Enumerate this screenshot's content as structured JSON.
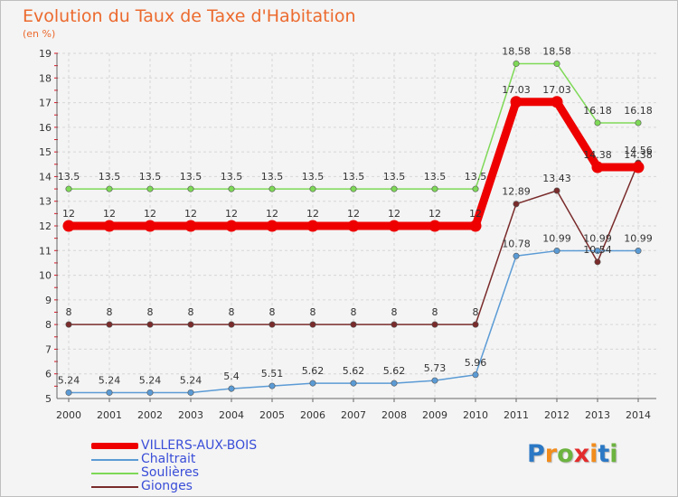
{
  "chart_data": {
    "type": "line",
    "title": "Evolution du Taux de Taxe d'Habitation",
    "subtitle": "(en %)",
    "x": [
      "2000",
      "2001",
      "2002",
      "2003",
      "2004",
      "2005",
      "2006",
      "2007",
      "2008",
      "2009",
      "2010",
      "2011",
      "2012",
      "2013",
      "2014"
    ],
    "ylim": [
      5,
      19
    ],
    "yticks": [
      5,
      6,
      7,
      8,
      9,
      10,
      11,
      12,
      13,
      14,
      15,
      16,
      17,
      18,
      19
    ],
    "grid": true,
    "legend_position": "bottom-left",
    "series": [
      {
        "name": "VILLERS-AUX-BOIS",
        "color": "#ee0000",
        "values": [
          12,
          12,
          12,
          12,
          12,
          12,
          12,
          12,
          12,
          12,
          12,
          17.03,
          17.03,
          14.38,
          14.38
        ],
        "labels": [
          "12",
          "12",
          "12",
          "12",
          "12",
          "12",
          "12",
          "12",
          "12",
          "12",
          "12",
          "17.03",
          "17.03",
          "14.38",
          "14.38"
        ]
      },
      {
        "name": "Chaltrait",
        "color": "#5b9bd5",
        "values": [
          5.24,
          5.24,
          5.24,
          5.24,
          5.4,
          5.51,
          5.62,
          5.62,
          5.62,
          5.73,
          5.96,
          10.78,
          10.99,
          10.99,
          10.99
        ],
        "labels": [
          "5.24",
          "5.24",
          "5.24",
          "5.24",
          "5.4",
          "5.51",
          "5.62",
          "5.62",
          "5.62",
          "5.73",
          "5.96",
          "10.78",
          "10.99",
          "10.99",
          "10.99"
        ]
      },
      {
        "name": "Soulières",
        "color": "#7ed957",
        "values": [
          13.5,
          13.5,
          13.5,
          13.5,
          13.5,
          13.5,
          13.5,
          13.5,
          13.5,
          13.5,
          13.5,
          18.58,
          18.58,
          16.18,
          16.18
        ],
        "labels": [
          "13.5",
          "13.5",
          "13.5",
          "13.5",
          "13.5",
          "13.5",
          "13.5",
          "13.5",
          "13.5",
          "13.5",
          "13.5",
          "18.58",
          "18.58",
          "16.18",
          "16.18"
        ]
      },
      {
        "name": "Gionges",
        "color": "#7a2b2b",
        "values": [
          8,
          8,
          8,
          8,
          8,
          8,
          8,
          8,
          8,
          8,
          8,
          12.89,
          13.43,
          10.54,
          14.56
        ],
        "labels": [
          "8",
          "8",
          "8",
          "8",
          "8",
          "8",
          "8",
          "8",
          "8",
          "8",
          "8",
          "12.89",
          "13.43",
          "10.54",
          "14.56"
        ]
      }
    ]
  },
  "logo": {
    "letters": [
      "P",
      "r",
      "o",
      "x",
      "i",
      "t",
      "i"
    ],
    "colors": [
      "#2b78c5",
      "#f28c1c",
      "#6cb33f",
      "#e32b2b",
      "#f28c1c",
      "#2b78c5",
      "#6cb33f"
    ]
  }
}
